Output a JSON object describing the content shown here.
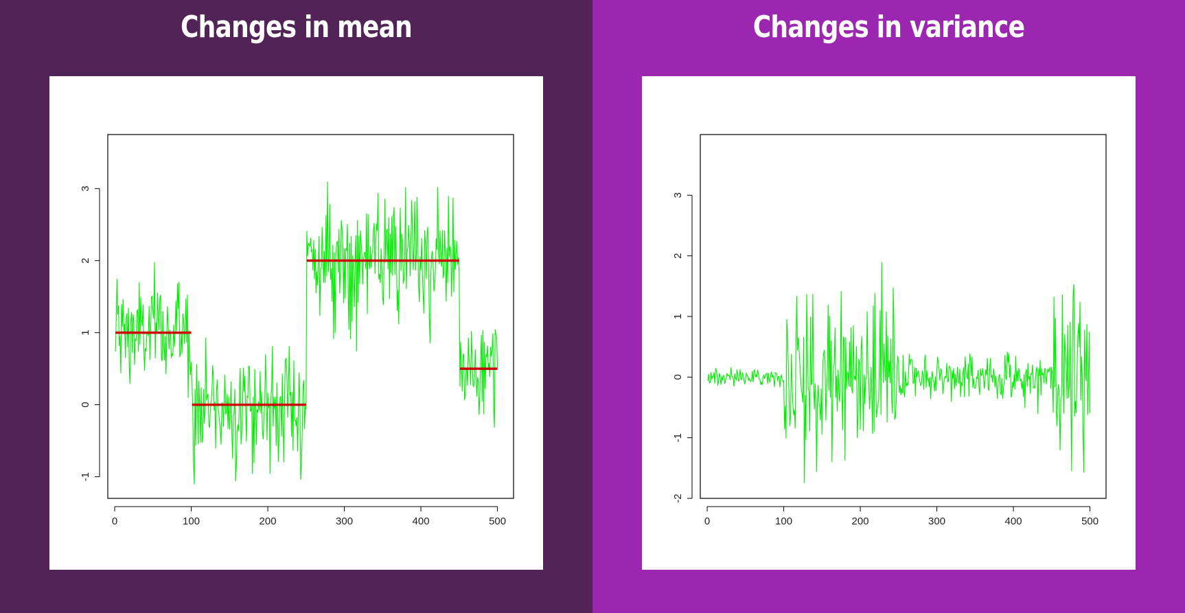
{
  "chart_data": [
    {
      "type": "line",
      "title": "Changes in mean",
      "xlabel": "",
      "ylabel": "",
      "xlim": [
        -9,
        521
      ],
      "ylim": [
        -1.3,
        3.75
      ],
      "xticks": [
        "0",
        "100",
        "200",
        "300",
        "400",
        "500"
      ],
      "yticks": [
        "-1",
        "0",
        "1",
        "2",
        "3"
      ],
      "grid": false,
      "legend": "none",
      "line_color": "#00ee00",
      "segment_color": "#cc0000",
      "series": [
        {
          "x_range": [
            1,
            500
          ],
          "segments": [
            {
              "x_start": 1,
              "x_end": 100,
              "mean": 1.0,
              "sd": 0.4
            },
            {
              "x_start": 101,
              "x_end": 250,
              "mean": 0.0,
              "sd": 0.4
            },
            {
              "x_start": 251,
              "x_end": 450,
              "mean": 2.0,
              "sd": 0.4
            },
            {
              "x_start": 451,
              "x_end": 500,
              "mean": 0.5,
              "sd": 0.4
            }
          ]
        }
      ],
      "mean_lines": [
        {
          "x_start": 1,
          "x_end": 100,
          "y": 1.0
        },
        {
          "x_start": 101,
          "x_end": 250,
          "y": 0.0
        },
        {
          "x_start": 251,
          "x_end": 450,
          "y": 2.0
        },
        {
          "x_start": 451,
          "x_end": 500,
          "y": 0.5
        }
      ]
    },
    {
      "type": "line",
      "title": "Changes in variance",
      "xlabel": "",
      "ylabel": "",
      "xlim": [
        -9,
        521
      ],
      "ylim": [
        -2.0,
        4.0
      ],
      "xticks": [
        "0",
        "100",
        "200",
        "300",
        "400",
        "500"
      ],
      "yticks": [
        "-2",
        "-1",
        "0",
        "1",
        "2",
        "3"
      ],
      "grid": false,
      "legend": "none",
      "line_color": "#00ee00",
      "series": [
        {
          "x_range": [
            1,
            500
          ],
          "segments": [
            {
              "x_start": 1,
              "x_end": 100,
              "mean": 0.0,
              "sd": 0.07
            },
            {
              "x_start": 101,
              "x_end": 250,
              "mean": 0.0,
              "sd": 0.6
            },
            {
              "x_start": 251,
              "x_end": 450,
              "mean": 0.0,
              "sd": 0.2
            },
            {
              "x_start": 451,
              "x_end": 500,
              "mean": 0.0,
              "sd": 0.8
            }
          ]
        }
      ]
    }
  ]
}
